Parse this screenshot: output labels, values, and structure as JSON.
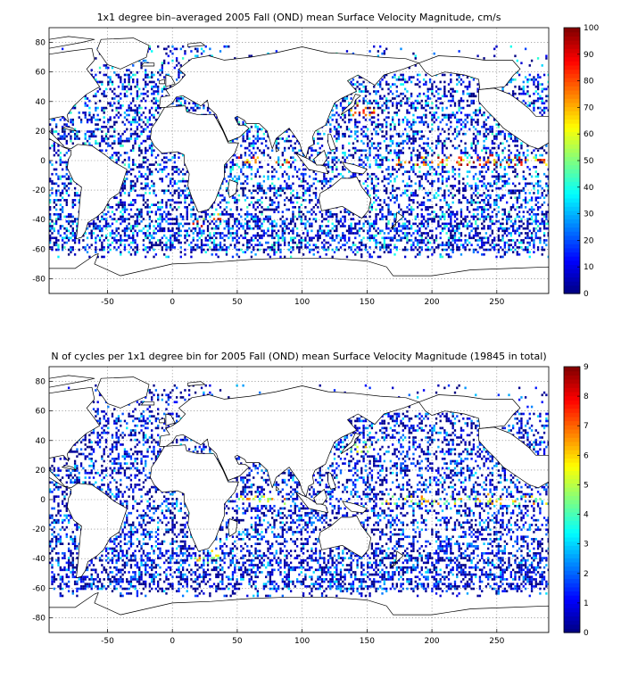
{
  "chart_data": [
    {
      "type": "heatmap",
      "title": "1x1 degree bin–averaged 2005 Fall (OND) mean Surface Velocity Magnitude, cm/s",
      "xlim": [
        -95,
        290
      ],
      "ylim": [
        -90,
        90
      ],
      "x_ticks": [
        -50,
        0,
        50,
        100,
        150,
        200,
        250
      ],
      "x_tick_labels": [
        "-50",
        "0",
        "50",
        "100",
        "150",
        "200",
        "250"
      ],
      "y_ticks": [
        80,
        60,
        40,
        20,
        0,
        -20,
        -40,
        -60,
        -80
      ],
      "y_tick_labels": [
        "80",
        "60",
        "40",
        "20",
        "0",
        "-20",
        "-40",
        "-60",
        "-80"
      ],
      "grid": true,
      "colormap": "jet",
      "clim": [
        0,
        100
      ],
      "colorbar_ticks": [
        0,
        10,
        20,
        30,
        40,
        50,
        60,
        70,
        80,
        90,
        100
      ],
      "colorbar_tick_labels": [
        "0",
        "10",
        "20",
        "30",
        "40",
        "50",
        "60",
        "70",
        "80",
        "90",
        "100"
      ],
      "colorbar_position": "right"
    },
    {
      "type": "heatmap",
      "title": "N of cycles per 1x1 degree bin for 2005 Fall (OND) mean Surface Velocity Magnitude (19845 in total)",
      "xlim": [
        -95,
        290
      ],
      "ylim": [
        -90,
        90
      ],
      "x_ticks": [
        -50,
        0,
        50,
        100,
        150,
        200,
        250
      ],
      "x_tick_labels": [
        "-50",
        "0",
        "50",
        "100",
        "150",
        "200",
        "250"
      ],
      "y_ticks": [
        80,
        60,
        40,
        20,
        0,
        -20,
        -40,
        -60,
        -80
      ],
      "y_tick_labels": [
        "80",
        "60",
        "40",
        "20",
        "0",
        "-20",
        "-40",
        "-60",
        "-80"
      ],
      "grid": true,
      "colormap": "jet",
      "clim": [
        0,
        9
      ],
      "colorbar_ticks": [
        0,
        1,
        2,
        3,
        4,
        5,
        6,
        7,
        8,
        9
      ],
      "colorbar_tick_labels": [
        "0",
        "1",
        "2",
        "3",
        "4",
        "5",
        "6",
        "7",
        "8",
        "9"
      ],
      "colorbar_position": "right"
    }
  ]
}
